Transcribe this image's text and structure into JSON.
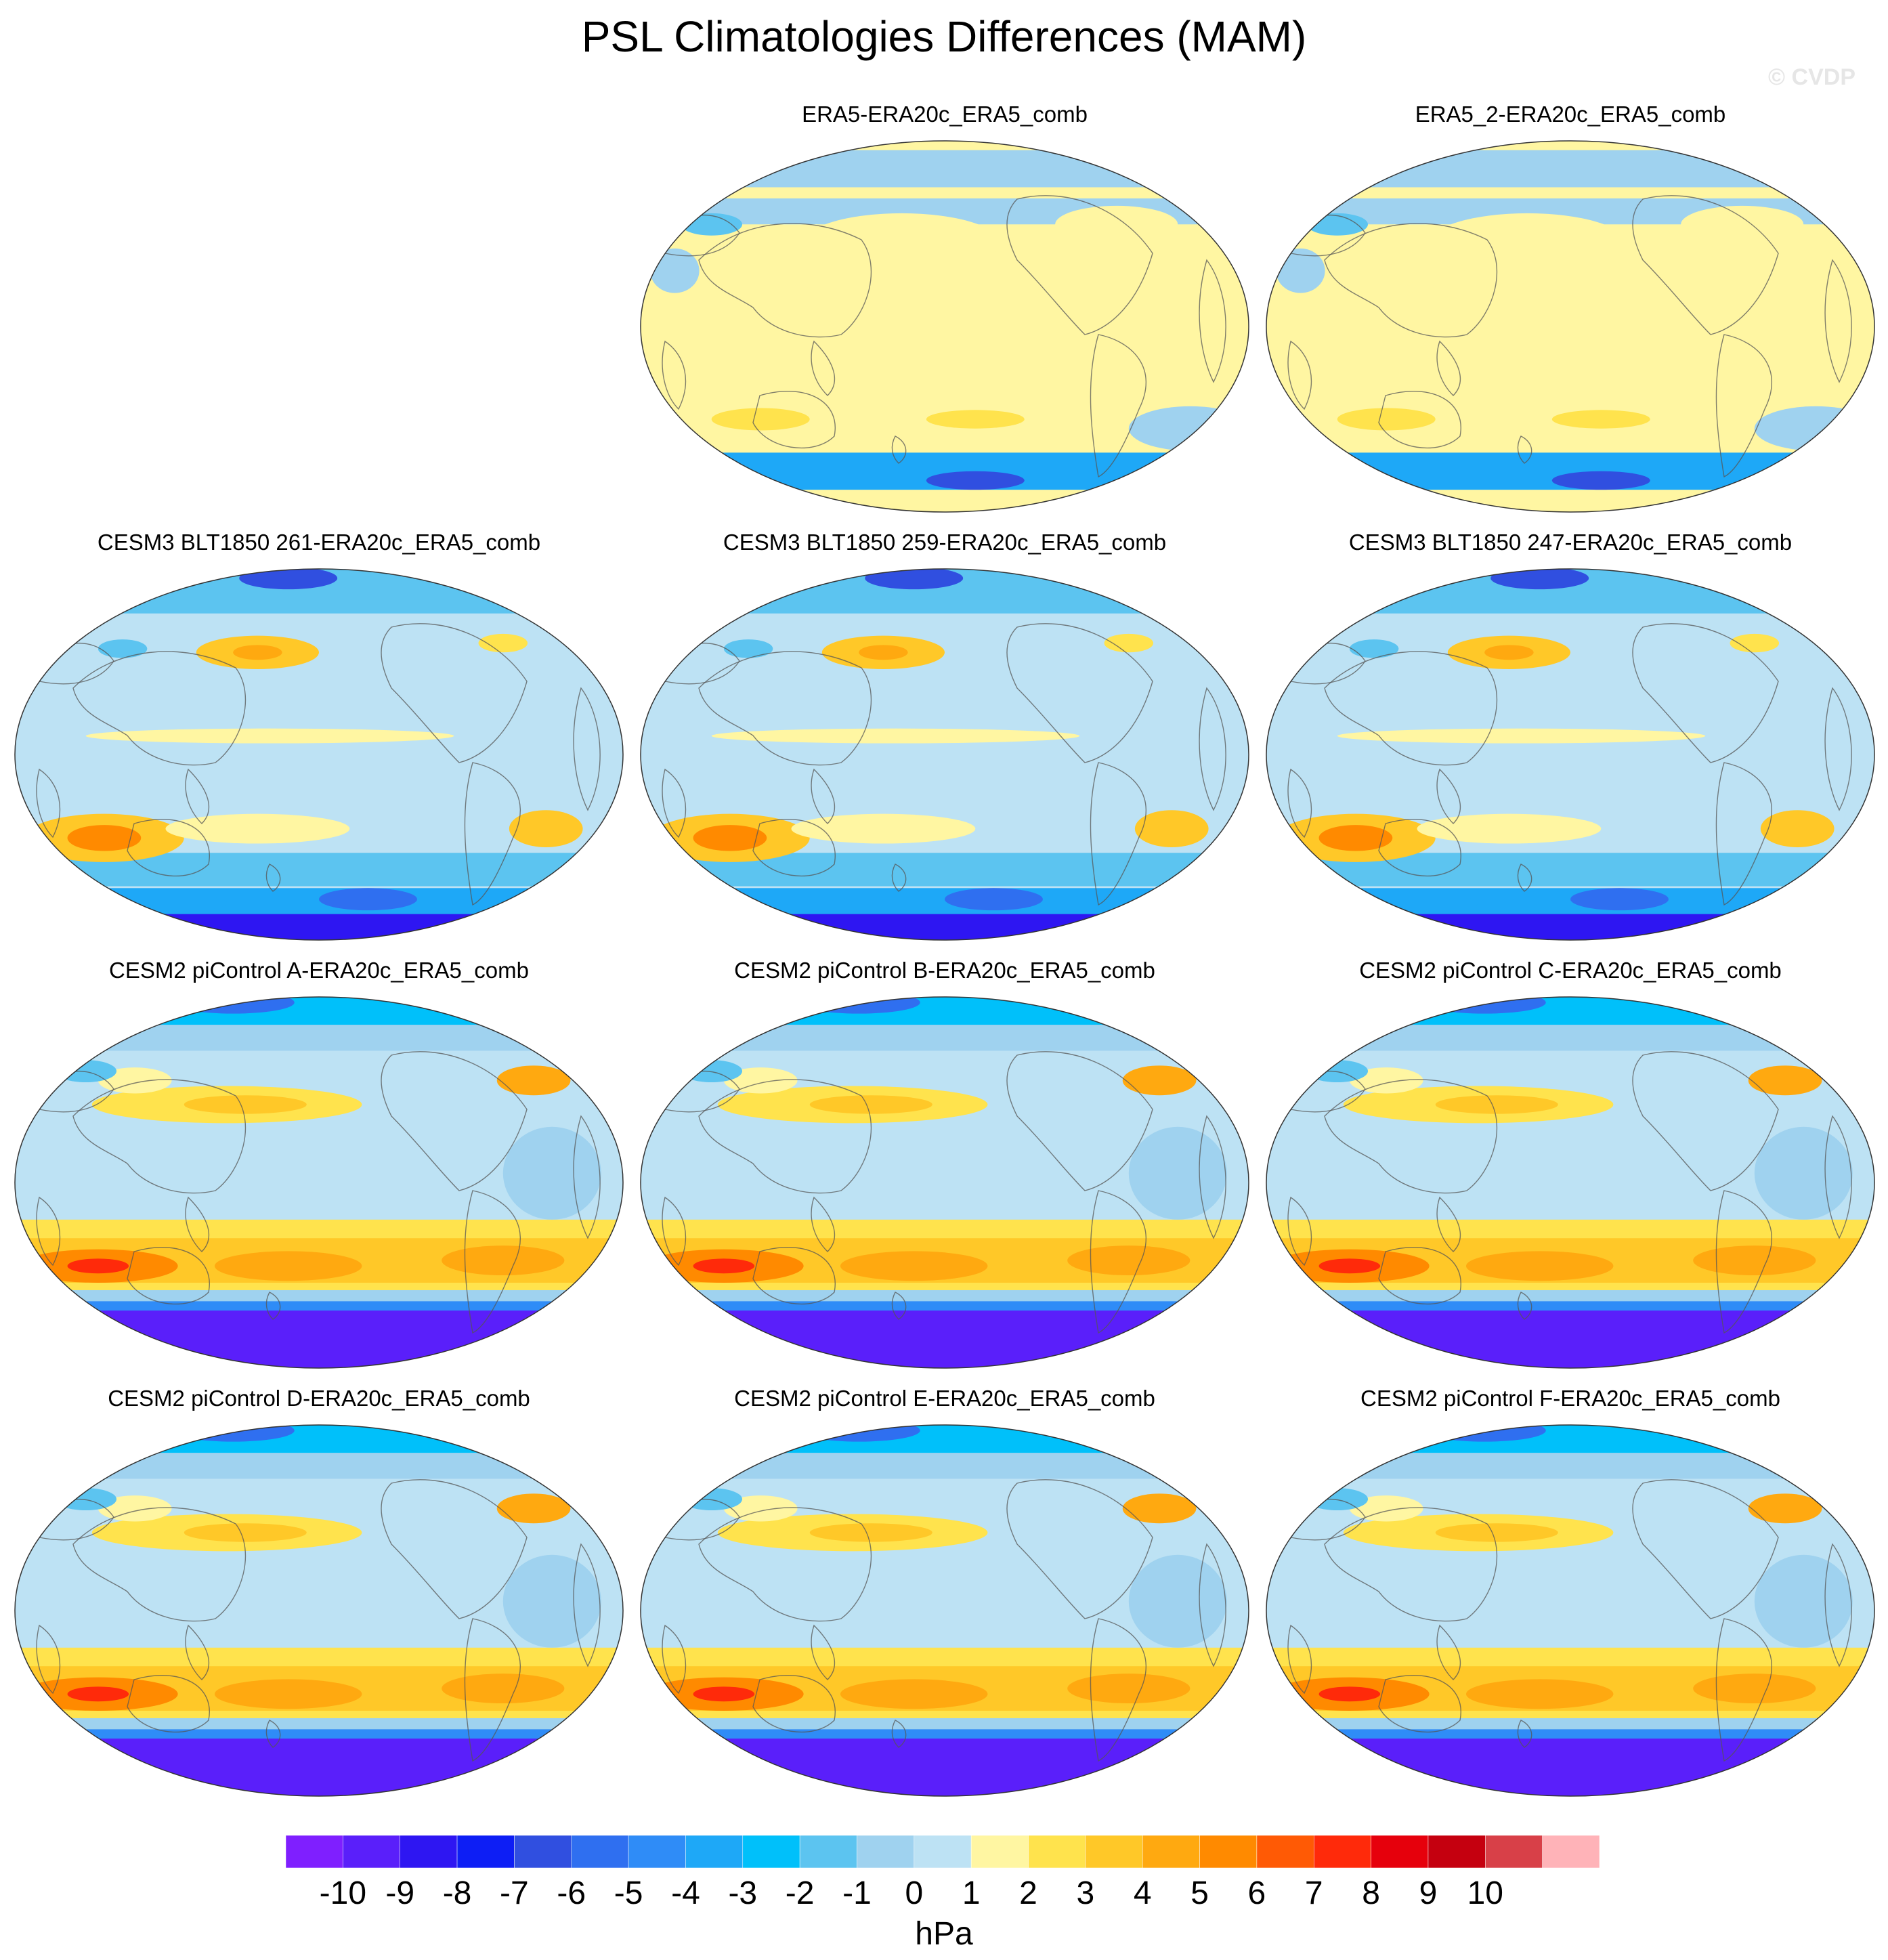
{
  "title": "PSL Climatologies Differences (MAM)",
  "watermark": "© CVDP",
  "chart_data": {
    "type": "heatmap",
    "title": "PSL Climatologies Differences (MAM)",
    "projection": "Robinson (global maps)",
    "panels": [
      {
        "title": "ERA5-ERA20c_ERA5_comb",
        "row": 1,
        "col": 2,
        "pattern": "reanalysis",
        "range_hPa": [
          -7,
          2
        ]
      },
      {
        "title": "ERA5_2-ERA20c_ERA5_comb",
        "row": 1,
        "col": 3,
        "pattern": "reanalysis",
        "range_hPa": [
          -8,
          2
        ]
      },
      {
        "title": "CESM3 BLT1850 261-ERA20c_ERA5_comb",
        "row": 2,
        "col": 1,
        "pattern": "cesm3",
        "range_hPa": [
          -10,
          4
        ]
      },
      {
        "title": "CESM3 BLT1850 259-ERA20c_ERA5_comb",
        "row": 2,
        "col": 2,
        "pattern": "cesm3",
        "range_hPa": [
          -10,
          4
        ]
      },
      {
        "title": "CESM3 BLT1850 247-ERA20c_ERA5_comb",
        "row": 2,
        "col": 3,
        "pattern": "cesm3",
        "range_hPa": [
          -10,
          4
        ]
      },
      {
        "title": "CESM2 piControl A-ERA20c_ERA5_comb",
        "row": 3,
        "col": 1,
        "pattern": "cesm2",
        "range_hPa": [
          -11,
          6
        ]
      },
      {
        "title": "CESM2 piControl B-ERA20c_ERA5_comb",
        "row": 3,
        "col": 2,
        "pattern": "cesm2",
        "range_hPa": [
          -11,
          6
        ]
      },
      {
        "title": "CESM2 piControl C-ERA20c_ERA5_comb",
        "row": 3,
        "col": 3,
        "pattern": "cesm2",
        "range_hPa": [
          -11,
          6
        ]
      },
      {
        "title": "CESM2 piControl D-ERA20c_ERA5_comb",
        "row": 4,
        "col": 1,
        "pattern": "cesm2",
        "range_hPa": [
          -11,
          6
        ]
      },
      {
        "title": "CESM2 piControl E-ERA20c_ERA5_comb",
        "row": 4,
        "col": 2,
        "pattern": "cesm2",
        "range_hPa": [
          -11,
          6
        ]
      },
      {
        "title": "CESM2 piControl F-ERA20c_ERA5_comb",
        "row": 4,
        "col": 3,
        "pattern": "cesm2",
        "range_hPa": [
          -11,
          6
        ]
      }
    ],
    "colorbar": {
      "units": "hPa",
      "levels": [
        "-10",
        "-9",
        "-8",
        "-7",
        "-6",
        "-5",
        "-4",
        "-3",
        "-2",
        "-1",
        "0",
        "1",
        "2",
        "3",
        "4",
        "5",
        "6",
        "7",
        "8",
        "9",
        "10"
      ],
      "colors": [
        "#7f1fff",
        "#5a1ffa",
        "#2e16f2",
        "#0d1ef5",
        "#304fe0",
        "#2f6ff0",
        "#2f8cf7",
        "#1ea8f7",
        "#00c0fa",
        "#5cc4f0",
        "#9fd2ef",
        "#bde2f4",
        "#fff6a2",
        "#ffe34d",
        "#ffc828",
        "#ffa910",
        "#ff8a00",
        "#ff5a05",
        "#ff2a0a",
        "#e6000c",
        "#c5000f",
        "#d84048",
        "#ffb3b8"
      ]
    }
  }
}
